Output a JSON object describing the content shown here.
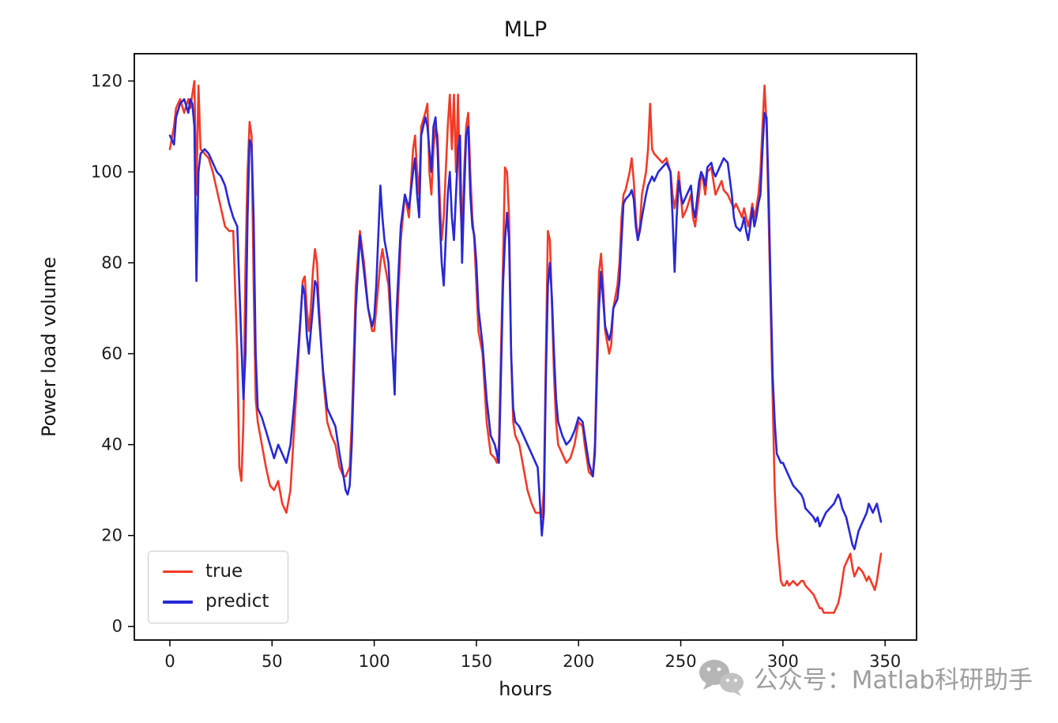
{
  "watermark": {
    "text": "公众号：Matlab科研助手",
    "icon": "wechat-icon",
    "color": "#b5b5b5"
  },
  "chart_data": {
    "type": "line",
    "title": "MLP",
    "xlabel": "hours",
    "ylabel": "Power load volume",
    "x_ticks": [
      0,
      50,
      100,
      150,
      200,
      250,
      300,
      350
    ],
    "y_ticks": [
      0,
      20,
      40,
      60,
      80,
      100,
      120
    ],
    "x_range": [
      -17.4,
      365.4
    ],
    "y_range": [
      -3,
      126
    ],
    "grid": false,
    "legend": {
      "position": "lower left",
      "entries": [
        {
          "label": "true",
          "color": "#f23a28"
        },
        {
          "label": "predict",
          "color": "#2728d6"
        }
      ]
    },
    "columns": [
      "hours",
      "true",
      "predict"
    ],
    "points": [
      [
        0,
        105,
        108
      ],
      [
        2,
        110,
        106
      ],
      [
        3,
        114,
        112
      ],
      [
        5,
        116,
        115
      ],
      [
        7,
        113,
        116
      ],
      [
        9,
        116,
        113
      ],
      [
        10,
        114,
        116
      ],
      [
        11,
        117,
        115
      ],
      [
        12,
        120,
        110
      ],
      [
        13,
        95,
        76
      ],
      [
        14,
        119,
        100
      ],
      [
        15,
        105,
        104
      ],
      [
        17,
        104,
        105
      ],
      [
        19,
        103,
        104
      ],
      [
        21,
        100,
        102
      ],
      [
        23,
        96,
        100
      ],
      [
        25,
        92,
        99
      ],
      [
        27,
        88,
        97
      ],
      [
        29,
        87,
        93
      ],
      [
        31,
        87,
        90
      ],
      [
        33,
        60,
        88
      ],
      [
        34,
        35,
        75
      ],
      [
        35,
        32,
        62
      ],
      [
        36,
        45,
        50
      ],
      [
        37,
        80,
        60
      ],
      [
        38,
        100,
        90
      ],
      [
        39,
        111,
        107
      ],
      [
        40,
        108,
        106
      ],
      [
        41,
        75,
        90
      ],
      [
        42,
        50,
        60
      ],
      [
        43,
        45,
        48
      ],
      [
        45,
        40,
        46
      ],
      [
        47,
        35,
        43
      ],
      [
        49,
        31,
        40
      ],
      [
        51,
        30,
        37
      ],
      [
        53,
        32,
        40
      ],
      [
        55,
        27,
        38
      ],
      [
        57,
        25,
        36
      ],
      [
        59,
        30,
        40
      ],
      [
        61,
        45,
        50
      ],
      [
        63,
        60,
        62
      ],
      [
        65,
        76,
        75
      ],
      [
        66,
        77,
        73
      ],
      [
        67,
        70,
        64
      ],
      [
        68,
        65,
        60
      ],
      [
        69,
        70,
        65
      ],
      [
        70,
        78,
        70
      ],
      [
        71,
        83,
        76
      ],
      [
        72,
        80,
        75
      ],
      [
        73,
        70,
        68
      ],
      [
        75,
        55,
        56
      ],
      [
        77,
        45,
        48
      ],
      [
        79,
        42,
        46
      ],
      [
        81,
        40,
        44
      ],
      [
        83,
        35,
        38
      ],
      [
        85,
        33,
        33
      ],
      [
        86,
        33,
        30
      ],
      [
        87,
        34,
        29
      ],
      [
        88,
        35,
        31
      ],
      [
        89,
        45,
        40
      ],
      [
        90,
        60,
        55
      ],
      [
        91,
        75,
        70
      ],
      [
        93,
        87,
        86
      ],
      [
        95,
        80,
        78
      ],
      [
        97,
        70,
        70
      ],
      [
        99,
        65,
        66
      ],
      [
        100,
        65,
        68
      ],
      [
        101,
        70,
        75
      ],
      [
        103,
        80,
        97
      ],
      [
        104,
        83,
        90
      ],
      [
        105,
        80,
        85
      ],
      [
        107,
        75,
        80
      ],
      [
        109,
        60,
        60
      ],
      [
        110,
        55,
        51
      ],
      [
        111,
        65,
        70
      ],
      [
        113,
        85,
        88
      ],
      [
        115,
        95,
        95
      ],
      [
        117,
        90,
        92
      ],
      [
        119,
        105,
        100
      ],
      [
        120,
        108,
        103
      ],
      [
        121,
        100,
        95
      ],
      [
        122,
        95,
        90
      ],
      [
        123,
        110,
        108
      ],
      [
        125,
        113,
        112
      ],
      [
        126,
        115,
        110
      ],
      [
        127,
        100,
        105
      ],
      [
        128,
        95,
        100
      ],
      [
        129,
        105,
        110
      ],
      [
        130,
        110,
        112
      ],
      [
        131,
        108,
        105
      ],
      [
        132,
        95,
        90
      ],
      [
        133,
        85,
        80
      ],
      [
        134,
        90,
        75
      ],
      [
        135,
        100,
        85
      ],
      [
        136,
        110,
        95
      ],
      [
        137,
        117,
        100
      ],
      [
        138,
        105,
        90
      ],
      [
        139,
        117,
        85
      ],
      [
        140,
        100,
        95
      ],
      [
        141,
        117,
        105
      ],
      [
        142,
        95,
        108
      ],
      [
        143,
        85,
        80
      ],
      [
        144,
        100,
        95
      ],
      [
        145,
        110,
        108
      ],
      [
        146,
        113,
        110
      ],
      [
        147,
        100,
        95
      ],
      [
        148,
        90,
        88
      ],
      [
        149,
        85,
        86
      ],
      [
        150,
        75,
        80
      ],
      [
        151,
        65,
        70
      ],
      [
        153,
        60,
        62
      ],
      [
        155,
        45,
        50
      ],
      [
        157,
        38,
        42
      ],
      [
        159,
        37,
        40
      ],
      [
        160,
        36,
        38
      ],
      [
        161,
        40,
        36
      ],
      [
        162,
        60,
        55
      ],
      [
        163,
        80,
        75
      ],
      [
        164,
        101,
        85
      ],
      [
        165,
        100,
        91
      ],
      [
        166,
        90,
        85
      ],
      [
        167,
        60,
        60
      ],
      [
        168,
        45,
        48
      ],
      [
        169,
        42,
        45
      ],
      [
        171,
        40,
        44
      ],
      [
        173,
        35,
        42
      ],
      [
        175,
        30,
        40
      ],
      [
        177,
        27,
        38
      ],
      [
        179,
        25,
        36
      ],
      [
        180,
        25,
        35
      ],
      [
        181,
        25,
        28
      ],
      [
        182,
        24,
        20
      ],
      [
        183,
        30,
        25
      ],
      [
        184,
        60,
        55
      ],
      [
        185,
        87,
        75
      ],
      [
        186,
        85,
        80
      ],
      [
        187,
        70,
        72
      ],
      [
        188,
        55,
        60
      ],
      [
        189,
        45,
        50
      ],
      [
        190,
        40,
        45
      ],
      [
        192,
        38,
        42
      ],
      [
        194,
        36,
        40
      ],
      [
        196,
        37,
        41
      ],
      [
        198,
        40,
        43
      ],
      [
        200,
        45,
        46
      ],
      [
        202,
        44,
        45
      ],
      [
        203,
        40,
        42
      ],
      [
        205,
        34,
        36
      ],
      [
        207,
        33,
        33
      ],
      [
        208,
        40,
        38
      ],
      [
        209,
        60,
        55
      ],
      [
        210,
        78,
        70
      ],
      [
        211,
        82,
        78
      ],
      [
        212,
        75,
        72
      ],
      [
        213,
        65,
        66
      ],
      [
        215,
        60,
        63
      ],
      [
        216,
        62,
        65
      ],
      [
        217,
        70,
        70
      ],
      [
        219,
        75,
        72
      ],
      [
        220,
        80,
        76
      ],
      [
        221,
        90,
        85
      ],
      [
        222,
        95,
        93
      ],
      [
        223,
        96,
        94
      ],
      [
        225,
        100,
        95
      ],
      [
        226,
        103,
        96
      ],
      [
        227,
        98,
        94
      ],
      [
        228,
        90,
        88
      ],
      [
        229,
        85,
        85
      ],
      [
        230,
        88,
        87
      ],
      [
        231,
        95,
        90
      ],
      [
        233,
        100,
        95
      ],
      [
        234,
        105,
        97
      ],
      [
        235,
        115,
        98
      ],
      [
        236,
        105,
        99
      ],
      [
        237,
        104,
        98
      ],
      [
        239,
        103,
        100
      ],
      [
        241,
        102,
        101
      ],
      [
        243,
        103,
        102
      ],
      [
        245,
        100,
        100
      ],
      [
        246,
        95,
        90
      ],
      [
        247,
        92,
        78
      ],
      [
        248,
        95,
        90
      ],
      [
        249,
        100,
        98
      ],
      [
        250,
        95,
        95
      ],
      [
        251,
        90,
        93
      ],
      [
        253,
        92,
        95
      ],
      [
        255,
        95,
        97
      ],
      [
        256,
        90,
        92
      ],
      [
        257,
        88,
        90
      ],
      [
        259,
        95,
        98
      ],
      [
        260,
        100,
        100
      ],
      [
        261,
        98,
        99
      ],
      [
        262,
        95,
        97
      ],
      [
        263,
        100,
        101
      ],
      [
        265,
        101,
        102
      ],
      [
        266,
        98,
        100
      ],
      [
        267,
        95,
        99
      ],
      [
        269,
        97,
        101
      ],
      [
        270,
        98,
        102
      ],
      [
        271,
        96,
        103
      ],
      [
        273,
        95,
        102
      ],
      [
        275,
        93,
        95
      ],
      [
        276,
        92,
        90
      ],
      [
        277,
        93,
        88
      ],
      [
        279,
        91,
        87
      ],
      [
        280,
        90,
        88
      ],
      [
        281,
        92,
        90
      ],
      [
        282,
        90,
        87
      ],
      [
        283,
        88,
        85
      ],
      [
        284,
        90,
        88
      ],
      [
        285,
        93,
        92
      ],
      [
        286,
        90,
        88
      ],
      [
        287,
        92,
        90
      ],
      [
        288,
        95,
        93
      ],
      [
        289,
        100,
        95
      ],
      [
        290,
        110,
        105
      ],
      [
        291,
        119,
        113
      ],
      [
        292,
        110,
        112
      ],
      [
        293,
        90,
        95
      ],
      [
        294,
        70,
        75
      ],
      [
        295,
        50,
        55
      ],
      [
        296,
        30,
        45
      ],
      [
        297,
        20,
        38
      ],
      [
        298,
        15,
        37
      ],
      [
        299,
        10,
        36
      ],
      [
        300,
        9,
        36
      ],
      [
        301,
        9,
        35
      ],
      [
        302,
        10,
        34
      ],
      [
        303,
        9,
        33
      ],
      [
        305,
        10,
        31
      ],
      [
        307,
        9,
        30
      ],
      [
        309,
        10,
        29
      ],
      [
        310,
        10,
        28
      ],
      [
        311,
        9,
        26
      ],
      [
        313,
        8,
        25
      ],
      [
        315,
        7,
        24
      ],
      [
        316,
        6,
        23
      ],
      [
        317,
        5,
        24
      ],
      [
        318,
        4,
        22
      ],
      [
        319,
        4,
        23
      ],
      [
        320,
        3,
        24
      ],
      [
        321,
        3,
        25
      ],
      [
        323,
        3,
        26
      ],
      [
        325,
        3,
        27
      ],
      [
        326,
        4,
        28
      ],
      [
        327,
        5,
        29
      ],
      [
        328,
        7,
        28
      ],
      [
        329,
        10,
        26
      ],
      [
        330,
        13,
        25
      ],
      [
        331,
        14,
        24
      ],
      [
        332,
        15,
        22
      ],
      [
        333,
        16,
        20
      ],
      [
        334,
        13,
        18
      ],
      [
        335,
        11,
        17
      ],
      [
        336,
        12,
        19
      ],
      [
        337,
        13,
        21
      ],
      [
        339,
        12,
        23
      ],
      [
        340,
        11,
        24
      ],
      [
        341,
        10,
        25
      ],
      [
        342,
        11,
        27
      ],
      [
        343,
        10,
        26
      ],
      [
        344,
        9,
        25
      ],
      [
        345,
        8,
        26
      ],
      [
        346,
        10,
        27
      ],
      [
        347,
        13,
        25
      ],
      [
        348,
        16,
        23
      ]
    ]
  }
}
